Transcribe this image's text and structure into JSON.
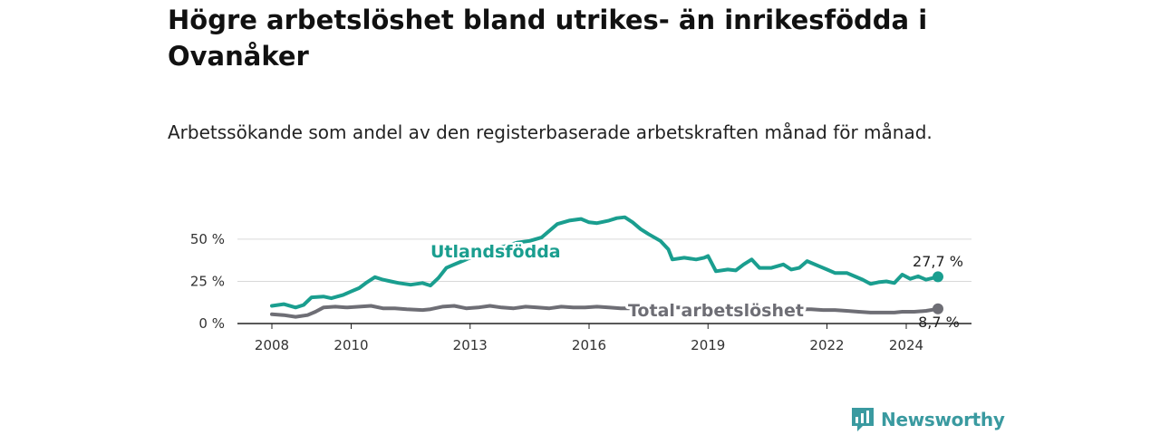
{
  "title": "Högre arbetslöshet bland utrikes- än inrikesfödda i Ovanåker",
  "subtitle": "Arbetssökande som andel av den registerbaserade arbetskraften månad för månad.",
  "brand": {
    "name": "Newsworthy",
    "icon": "bar-chart-logo-icon",
    "color": "#3a9aa0"
  },
  "chart_data": {
    "type": "line",
    "xlim": [
      2008,
      2024.8
    ],
    "ylim": [
      0,
      65
    ],
    "x_ticks": [
      2008,
      2010,
      2013,
      2016,
      2019,
      2022,
      2024
    ],
    "y_ticks": [
      0,
      25,
      50
    ],
    "y_tick_labels": [
      "0 %",
      "25 %",
      "50 %"
    ],
    "grid": "horizontal",
    "series": [
      {
        "name": "Utlandsfödda",
        "color": "#1a9e8f",
        "end_label": "27,7 %",
        "end_value": 27.7,
        "points": [
          [
            2008.0,
            10.5
          ],
          [
            2008.3,
            11.5
          ],
          [
            2008.6,
            9.5
          ],
          [
            2008.8,
            11
          ],
          [
            2009.0,
            15.5
          ],
          [
            2009.3,
            16
          ],
          [
            2009.5,
            15
          ],
          [
            2009.8,
            17
          ],
          [
            2010.0,
            19
          ],
          [
            2010.2,
            21
          ],
          [
            2010.4,
            24.5
          ],
          [
            2010.6,
            27.5
          ],
          [
            2010.8,
            26
          ],
          [
            2011.0,
            25
          ],
          [
            2011.2,
            24
          ],
          [
            2011.5,
            23
          ],
          [
            2011.8,
            24
          ],
          [
            2012.0,
            22.5
          ],
          [
            2012.2,
            27
          ],
          [
            2012.4,
            33
          ],
          [
            2012.6,
            35
          ],
          [
            2012.8,
            37
          ],
          [
            2013.0,
            39
          ],
          [
            2013.3,
            42
          ],
          [
            2013.6,
            44
          ],
          [
            2013.9,
            46
          ],
          [
            2014.2,
            48
          ],
          [
            2014.5,
            49
          ],
          [
            2014.8,
            51
          ],
          [
            2015.0,
            55
          ],
          [
            2015.2,
            59
          ],
          [
            2015.5,
            61
          ],
          [
            2015.8,
            62
          ],
          [
            2016.0,
            60
          ],
          [
            2016.2,
            59.5
          ],
          [
            2016.5,
            61
          ],
          [
            2016.7,
            62.5
          ],
          [
            2016.9,
            63
          ],
          [
            2017.1,
            60
          ],
          [
            2017.3,
            56
          ],
          [
            2017.5,
            53
          ],
          [
            2017.8,
            49
          ],
          [
            2018.0,
            44
          ],
          [
            2018.1,
            38
          ],
          [
            2018.4,
            39
          ],
          [
            2018.7,
            38
          ],
          [
            2018.9,
            39
          ],
          [
            2019.0,
            40
          ],
          [
            2019.2,
            31
          ],
          [
            2019.5,
            32
          ],
          [
            2019.7,
            31.5
          ],
          [
            2019.9,
            35
          ],
          [
            2020.1,
            38
          ],
          [
            2020.3,
            33
          ],
          [
            2020.6,
            33
          ],
          [
            2020.9,
            35
          ],
          [
            2021.1,
            32
          ],
          [
            2021.3,
            33
          ],
          [
            2021.5,
            37
          ],
          [
            2021.8,
            34
          ],
          [
            2022.0,
            32
          ],
          [
            2022.2,
            30
          ],
          [
            2022.5,
            30
          ],
          [
            2022.7,
            28
          ],
          [
            2022.9,
            26
          ],
          [
            2023.1,
            23.5
          ],
          [
            2023.3,
            24.5
          ],
          [
            2023.5,
            25
          ],
          [
            2023.7,
            24
          ],
          [
            2023.9,
            29
          ],
          [
            2024.1,
            26.5
          ],
          [
            2024.3,
            28
          ],
          [
            2024.5,
            26
          ],
          [
            2024.8,
            27.7
          ]
        ]
      },
      {
        "name": "Total arbetslöshet",
        "color": "#6e6e75",
        "end_label": "8,7 %",
        "end_value": 8.7,
        "points": [
          [
            2008.0,
            5.5
          ],
          [
            2008.3,
            5
          ],
          [
            2008.6,
            4
          ],
          [
            2008.9,
            5
          ],
          [
            2009.1,
            7
          ],
          [
            2009.3,
            9.5
          ],
          [
            2009.6,
            10
          ],
          [
            2009.9,
            9.5
          ],
          [
            2010.2,
            10
          ],
          [
            2010.5,
            10.5
          ],
          [
            2010.8,
            9
          ],
          [
            2011.1,
            9
          ],
          [
            2011.4,
            8.5
          ],
          [
            2011.8,
            8
          ],
          [
            2012.0,
            8.5
          ],
          [
            2012.3,
            10
          ],
          [
            2012.6,
            10.5
          ],
          [
            2012.9,
            9
          ],
          [
            2013.2,
            9.5
          ],
          [
            2013.5,
            10.5
          ],
          [
            2013.8,
            9.5
          ],
          [
            2014.1,
            9
          ],
          [
            2014.4,
            10
          ],
          [
            2014.7,
            9.5
          ],
          [
            2015.0,
            9
          ],
          [
            2015.3,
            10
          ],
          [
            2015.6,
            9.5
          ],
          [
            2015.9,
            9.5
          ],
          [
            2016.2,
            10
          ],
          [
            2016.5,
            9.5
          ],
          [
            2016.8,
            9
          ],
          [
            2017.1,
            9
          ],
          [
            2017.4,
            10
          ],
          [
            2017.7,
            10
          ],
          [
            2018.0,
            9.5
          ],
          [
            2018.3,
            9.5
          ],
          [
            2018.6,
            9.5
          ],
          [
            2018.9,
            10
          ],
          [
            2019.2,
            9
          ],
          [
            2019.5,
            9.5
          ],
          [
            2019.8,
            9
          ],
          [
            2020.1,
            9.5
          ],
          [
            2020.4,
            9.5
          ],
          [
            2020.7,
            9
          ],
          [
            2021.0,
            9
          ],
          [
            2021.3,
            8.5
          ],
          [
            2021.6,
            8.5
          ],
          [
            2021.9,
            8
          ],
          [
            2022.2,
            8
          ],
          [
            2022.5,
            7.5
          ],
          [
            2022.8,
            7
          ],
          [
            2023.1,
            6.5
          ],
          [
            2023.4,
            6.5
          ],
          [
            2023.7,
            6.5
          ],
          [
            2023.9,
            7
          ],
          [
            2024.2,
            7
          ],
          [
            2024.5,
            7.5
          ],
          [
            2024.8,
            8.7
          ]
        ]
      }
    ]
  }
}
